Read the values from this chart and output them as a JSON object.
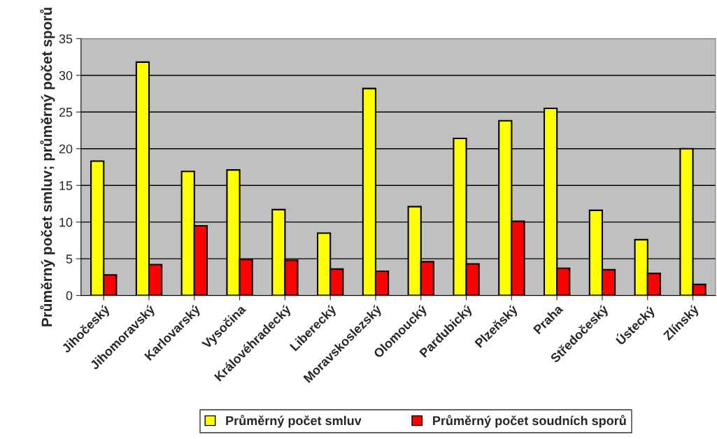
{
  "chart_data": {
    "type": "bar",
    "ylabel": "Průměrný počet smluv; průměrný počet sporů",
    "categories": [
      "Jihočeský",
      "Jihomoravský",
      "Karlovarský",
      "Vysočina",
      "Královéhradecký",
      "Liberecký",
      "Moravskoslezský",
      "Olomoucký",
      "Pardubický",
      "Plzeňský",
      "Praha",
      "Středočeský",
      "Ústecký",
      "Zlínský"
    ],
    "series": [
      {
        "name": "Průměrný počet smluv",
        "color": "#ffff00",
        "values": [
          18.3,
          31.8,
          16.9,
          17.1,
          11.7,
          8.5,
          28.2,
          12.1,
          21.4,
          23.8,
          25.5,
          11.6,
          7.6,
          20.0
        ]
      },
      {
        "name": "Průměrný počet soudních sporů",
        "color": "#ff0000",
        "values": [
          2.8,
          4.2,
          9.5,
          4.9,
          4.8,
          3.6,
          3.3,
          4.6,
          4.3,
          10.1,
          3.7,
          3.5,
          3.0,
          1.5
        ]
      }
    ],
    "ylim": [
      0,
      35
    ],
    "yticks": [
      0,
      5,
      10,
      15,
      20,
      25,
      30,
      35
    ],
    "grid": "y",
    "legend": "bottom"
  }
}
